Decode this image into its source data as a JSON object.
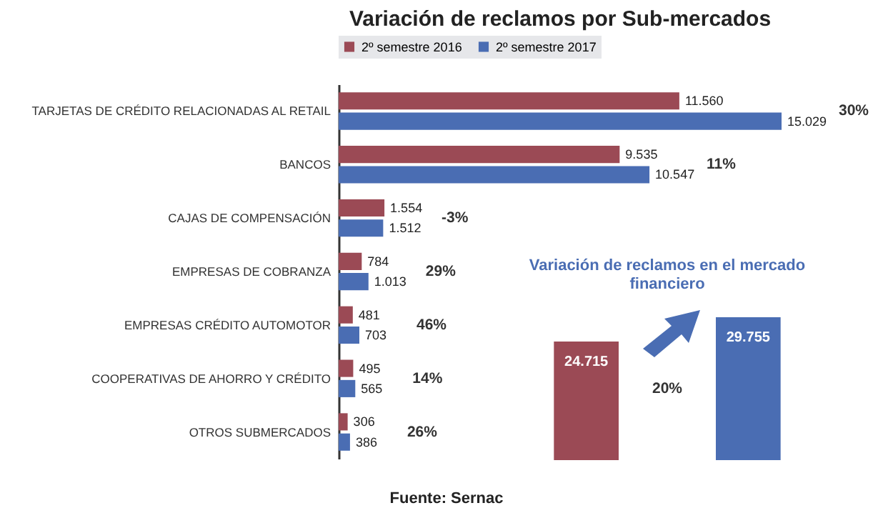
{
  "chart_data": [
    {
      "type": "bar",
      "orientation": "horizontal",
      "title": "Variación de reclamos por Sub-mercados",
      "categories": [
        "TARJETAS DE CRÉDITO RELACIONADAS AL RETAIL",
        "BANCOS",
        "CAJAS DE COMPENSACIÓN",
        "EMPRESAS DE COBRANZA",
        "EMPRESAS CRÉDITO AUTOMOTOR",
        "COOPERATIVAS DE AHORRO Y CRÉDITO",
        "OTROS SUBMERCADOS"
      ],
      "series": [
        {
          "name": "2º semestre 2016",
          "color": "#9b4a55",
          "values": [
            11560,
            9535,
            1554,
            784,
            481,
            495,
            306
          ],
          "value_labels": [
            "11.560",
            "9.535",
            "1.554",
            "784",
            "481",
            "495",
            "306"
          ]
        },
        {
          "name": "2º semestre 2017",
          "color": "#4a6db3",
          "values": [
            15029,
            10547,
            1512,
            1013,
            703,
            565,
            386
          ],
          "value_labels": [
            "15.029",
            "10.547",
            "1.512",
            "1.013",
            "703",
            "565",
            "386"
          ]
        }
      ],
      "legend": "top",
      "grid": false,
      "annotations": [
        "30%",
        "11%",
        "-3%",
        "29%",
        "46%",
        "14%",
        "26%",
        "Fuente: Sernac"
      ]
    },
    {
      "type": "bar",
      "title": "Variación de reclamos en el mercado financiero",
      "categories": [
        null,
        null
      ],
      "values": [
        24715,
        29755
      ],
      "colors": [
        "#9b4a55",
        "#4a6db3"
      ],
      "value_labels": [
        "24.715",
        "29.755"
      ],
      "annotations": [
        "20%"
      ],
      "grid": false,
      "legend": false
    }
  ]
}
